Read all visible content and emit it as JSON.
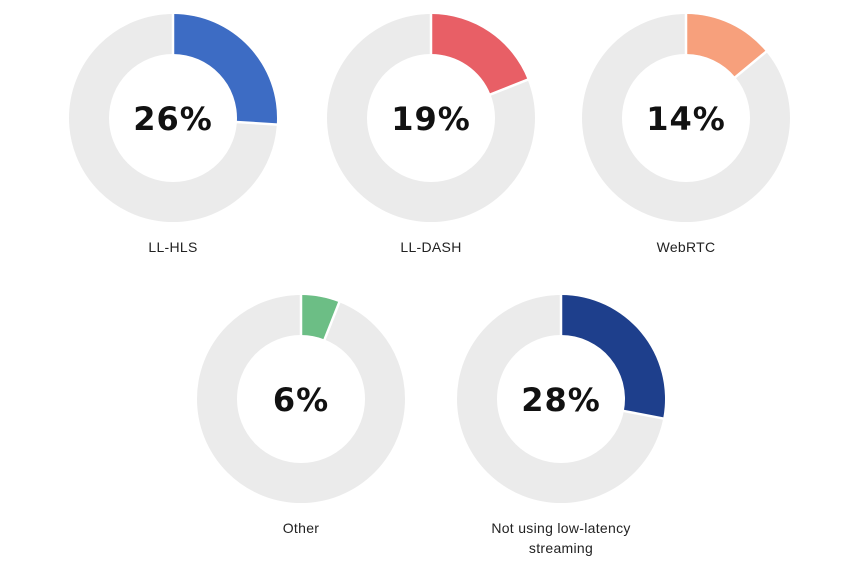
{
  "chart_data": [
    {
      "type": "pie",
      "category": "LL-HLS",
      "value": 26,
      "value_label": "26%",
      "color": "#3D6CC4",
      "track_color": "#EBEBEB"
    },
    {
      "type": "pie",
      "category": "LL-DASH",
      "value": 19,
      "value_label": "19%",
      "color": "#E85F66",
      "track_color": "#EBEBEB"
    },
    {
      "type": "pie",
      "category": "WebRTC",
      "value": 14,
      "value_label": "14%",
      "color": "#F7A07C",
      "track_color": "#EBEBEB"
    },
    {
      "type": "pie",
      "category": "Other",
      "value": 6,
      "value_label": "6%",
      "color": "#6CBE85",
      "track_color": "#EBEBEB"
    },
    {
      "type": "pie",
      "category": "Not using low-latency streaming",
      "value": 28,
      "value_label": "28%",
      "color": "#1E3F8C",
      "track_color": "#EBEBEB"
    }
  ]
}
